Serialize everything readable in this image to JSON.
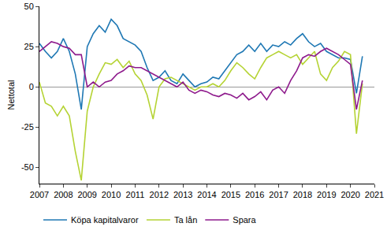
{
  "chart_data": {
    "type": "line",
    "y_label": "Nettotal",
    "x": [
      2007.0,
      2007.25,
      2007.5,
      2007.75,
      2008.0,
      2008.25,
      2008.5,
      2008.75,
      2009.0,
      2009.25,
      2009.5,
      2009.75,
      2010.0,
      2010.25,
      2010.5,
      2010.75,
      2011.0,
      2011.25,
      2011.5,
      2011.75,
      2012.0,
      2012.25,
      2012.5,
      2012.75,
      2013.0,
      2013.25,
      2013.5,
      2013.75,
      2014.0,
      2014.25,
      2014.5,
      2014.75,
      2015.0,
      2015.25,
      2015.5,
      2015.75,
      2016.0,
      2016.25,
      2016.5,
      2016.75,
      2017.0,
      2017.25,
      2017.5,
      2017.75,
      2018.0,
      2018.25,
      2018.5,
      2018.75,
      2019.0,
      2019.25,
      2019.5,
      2019.75,
      2020.0,
      2020.25,
      2020.5
    ],
    "series": [
      {
        "name": "Köpa kapitalvaror",
        "color": "#1f78b4",
        "values": [
          27,
          22,
          18,
          22,
          30,
          22,
          8,
          -14,
          25,
          33,
          38,
          34,
          42,
          38,
          30,
          28,
          26,
          22,
          12,
          4,
          6,
          10,
          4,
          2,
          8,
          4,
          0,
          2,
          3,
          6,
          5,
          10,
          15,
          20,
          22,
          26,
          22,
          27,
          22,
          26,
          25,
          28,
          26,
          30,
          33,
          28,
          25,
          27,
          22,
          20,
          18,
          18,
          17,
          -4,
          19
        ]
      },
      {
        "name": "Ta lån",
        "color": "#b5d334",
        "values": [
          3,
          -10,
          -12,
          -18,
          -12,
          -18,
          -40,
          -58,
          -15,
          0,
          8,
          15,
          14,
          17,
          12,
          16,
          8,
          4,
          -5,
          -20,
          0,
          5,
          6,
          4,
          2,
          0,
          -2,
          0,
          0,
          2,
          0,
          4,
          10,
          15,
          12,
          8,
          5,
          12,
          18,
          20,
          22,
          20,
          18,
          20,
          14,
          18,
          22,
          8,
          4,
          12,
          16,
          22,
          20,
          -29,
          2
        ]
      },
      {
        "name": "Spara",
        "color": "#8e1a8c",
        "values": [
          22,
          25,
          28,
          27,
          25,
          24,
          20,
          20,
          0,
          3,
          0,
          3,
          4,
          8,
          10,
          13,
          12,
          12,
          10,
          8,
          6,
          4,
          2,
          0,
          3,
          -2,
          -4,
          -2,
          -3,
          -5,
          -6,
          -4,
          -5,
          -7,
          -4,
          -8,
          -6,
          -3,
          -8,
          -2,
          0,
          -4,
          4,
          10,
          18,
          20,
          19,
          22,
          24,
          22,
          20,
          17,
          14,
          -14,
          4
        ]
      }
    ],
    "xlim": [
      2007,
      2021
    ],
    "xticks": [
      2007,
      2008,
      2009,
      2010,
      2011,
      2012,
      2013,
      2014,
      2015,
      2016,
      2017,
      2018,
      2019,
      2020,
      2021
    ],
    "ylim": [
      -60,
      50
    ],
    "yticks": [
      -50,
      -25,
      0,
      25,
      50
    ],
    "grid": false,
    "legend": "bottom"
  }
}
